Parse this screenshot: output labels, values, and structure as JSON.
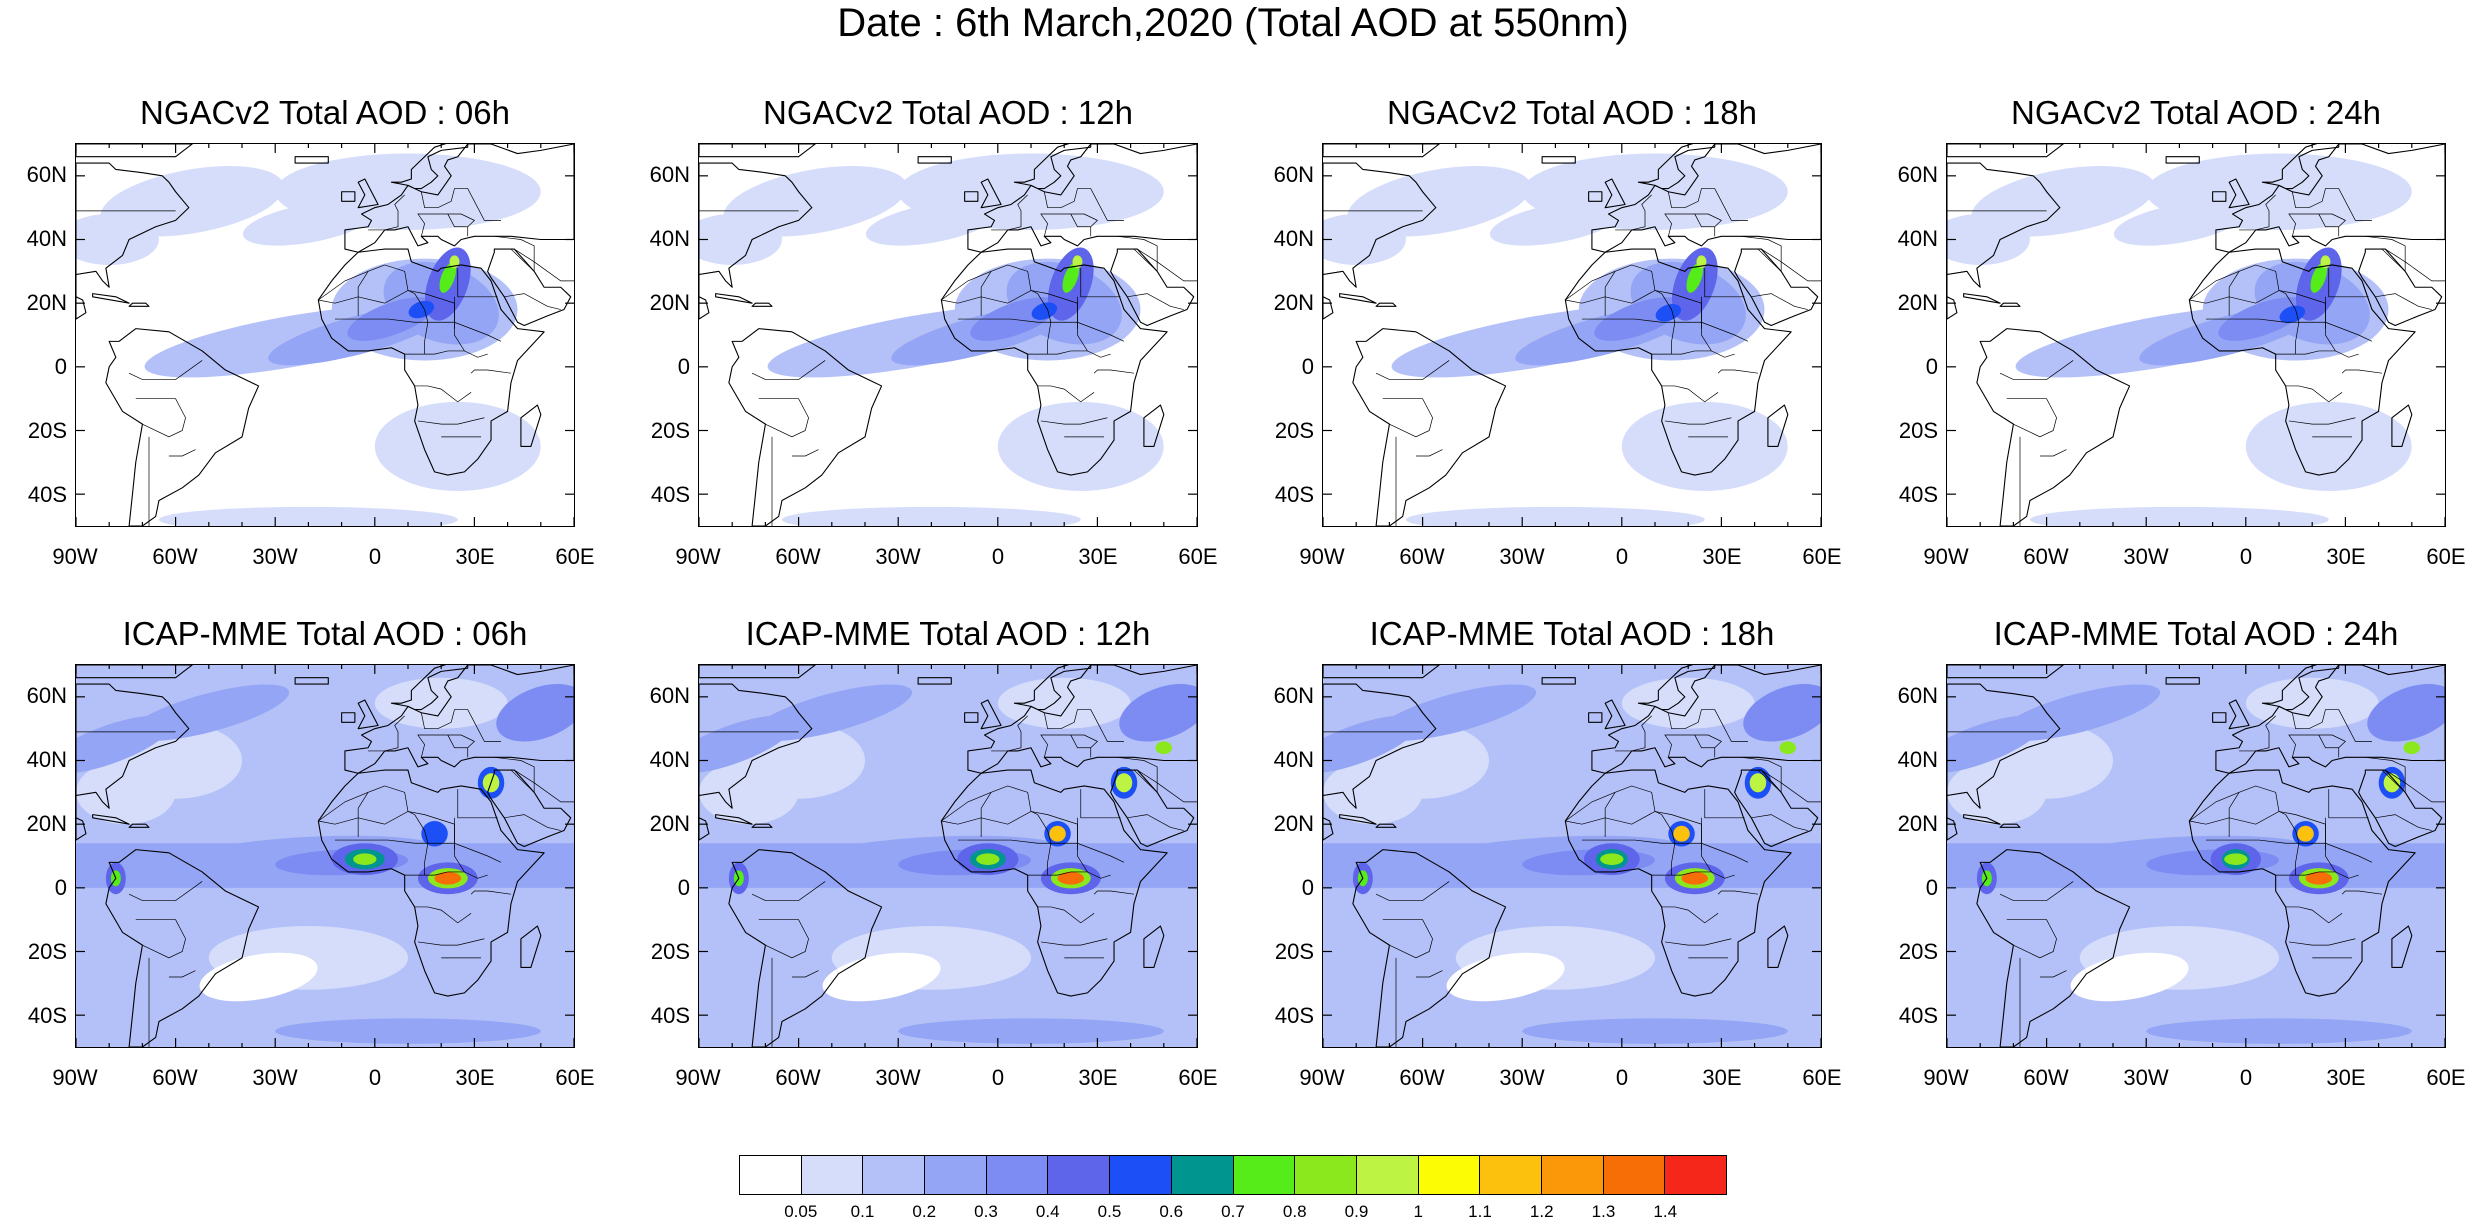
{
  "title": "Date : 6th March,2020 (Total AOD at 550nm)",
  "panels": [
    {
      "title": "NGACv2 Total AOD : 06h",
      "model": "ngac"
    },
    {
      "title": "NGACv2 Total AOD : 12h",
      "model": "ngac"
    },
    {
      "title": "NGACv2 Total AOD : 18h",
      "model": "ngac"
    },
    {
      "title": "NGACv2 Total AOD : 24h",
      "model": "ngac"
    },
    {
      "title": "ICAP-MME Total AOD : 06h",
      "model": "icap"
    },
    {
      "title": "ICAP-MME Total AOD : 12h",
      "model": "icap"
    },
    {
      "title": "ICAP-MME Total AOD : 18h",
      "model": "icap"
    },
    {
      "title": "ICAP-MME Total AOD : 24h",
      "model": "icap"
    }
  ],
  "lat_labels": [
    "60N",
    "40N",
    "20N",
    "0",
    "20S",
    "40S"
  ],
  "lon_labels": [
    "90W",
    "60W",
    "30W",
    "0",
    "30E",
    "60E"
  ],
  "colorbar": {
    "labels": [
      "0.05",
      "0.1",
      "0.2",
      "0.3",
      "0.4",
      "0.5",
      "0.6",
      "0.7",
      "0.8",
      "0.9",
      "1",
      "1.1",
      "1.2",
      "1.3",
      "1.4"
    ],
    "colors": [
      "#ffffff",
      "#d5ddfb",
      "#b4c1f8",
      "#93a5f4",
      "#7c8cf2",
      "#5e65ea",
      "#1c4ff5",
      "#00968f",
      "#55ec1a",
      "#8be81d",
      "#bdf443",
      "#fcfc05",
      "#fbc10c",
      "#fb9809",
      "#f76e07",
      "#f5271b"
    ]
  }
}
